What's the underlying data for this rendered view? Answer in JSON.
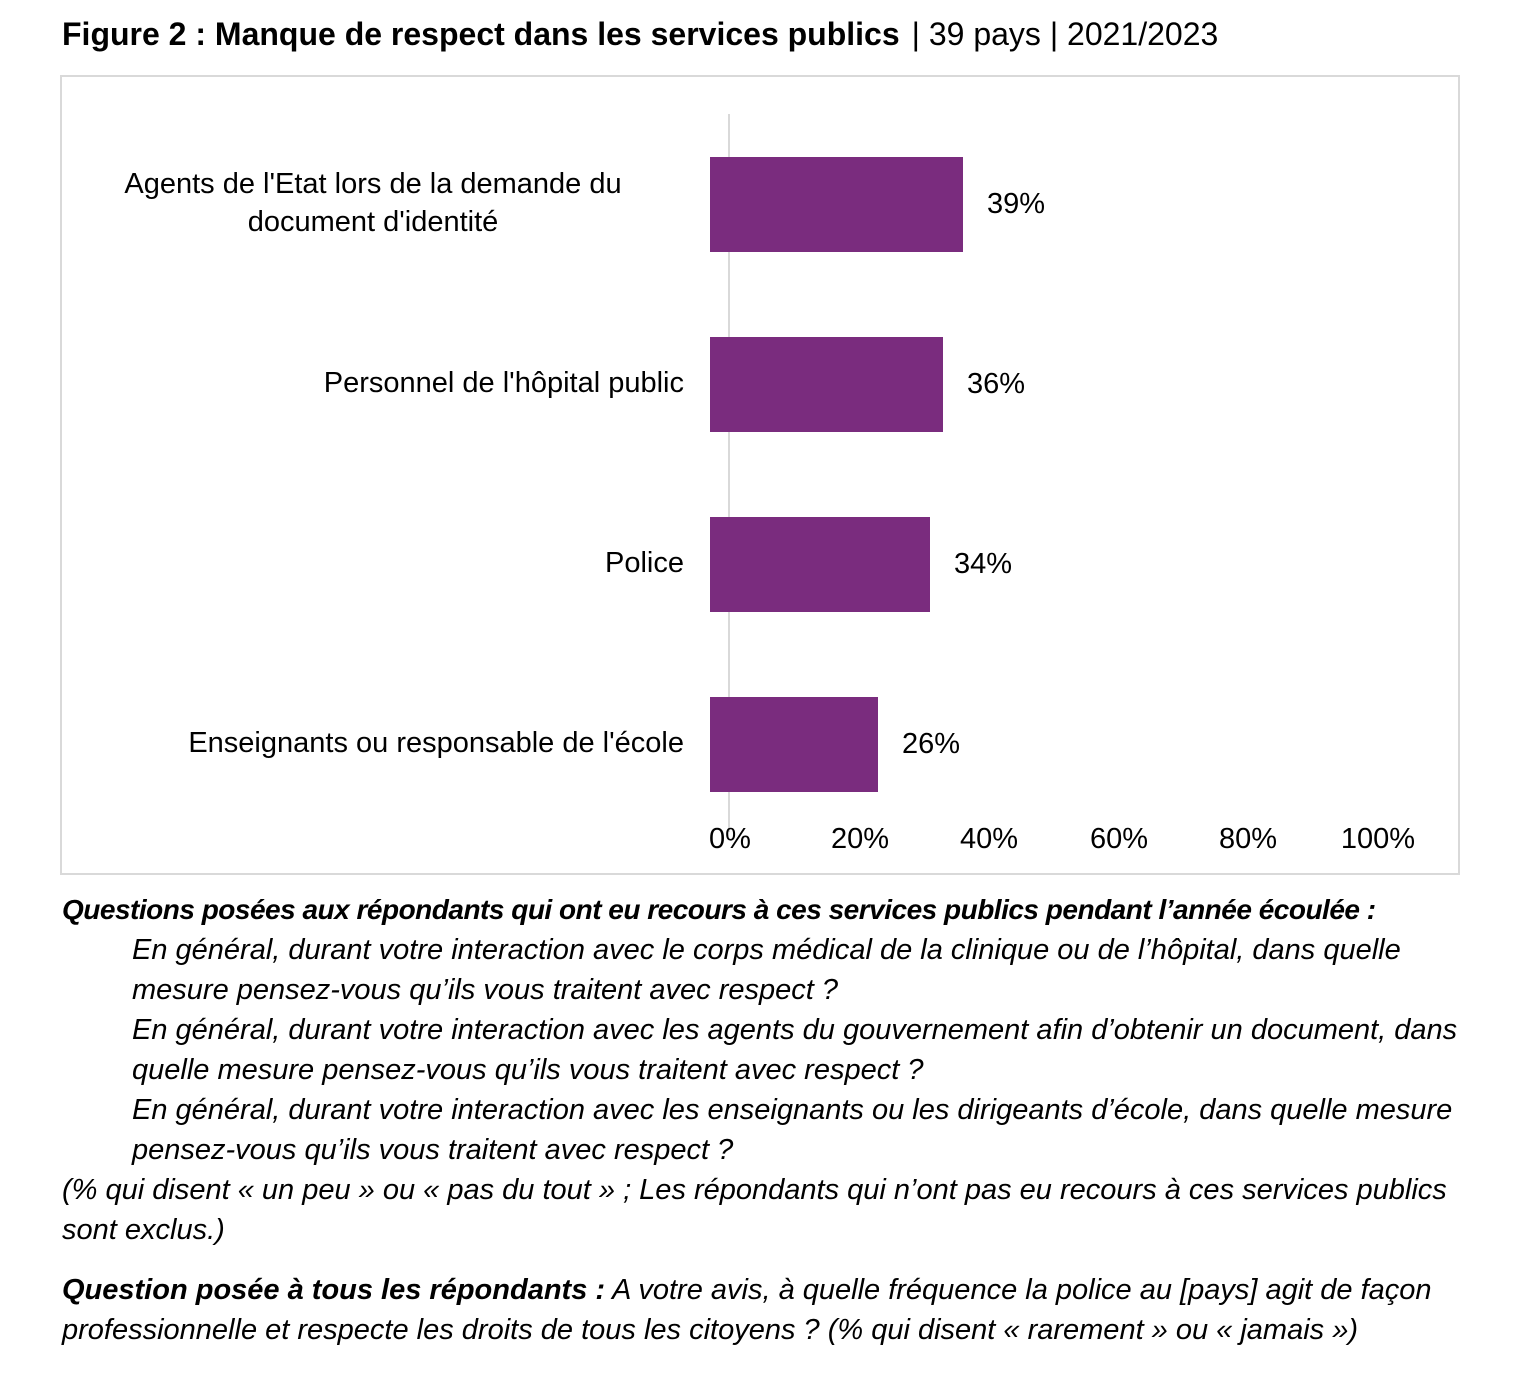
{
  "header": {
    "title_main": "Figure 2 : Manque de respect dans les services publics",
    "title_suffix": "| 39 pays | 2021/2023"
  },
  "chart_data": {
    "type": "bar",
    "orientation": "horizontal",
    "title": "Figure 2 : Manque de respect dans les services publics",
    "scope": "39 pays",
    "period": "2021/2023",
    "categories": [
      "Agents de l'Etat lors de la demande du document d'identité",
      "Personnel de l'hôpital public",
      "Police",
      "Enseignants ou responsable de l'école"
    ],
    "values": [
      39,
      36,
      34,
      26
    ],
    "value_labels": [
      "39%",
      "36%",
      "34%",
      "26%"
    ],
    "xlim": [
      0,
      100
    ],
    "xticks": [
      "0%",
      "20%",
      "40%",
      "60%",
      "80%",
      "100%"
    ],
    "xtick_values": [
      0,
      20,
      40,
      60,
      80,
      100
    ],
    "bar_color": "#7A2C7E",
    "axis_color": "#D9D9D9",
    "frame_border_color": "#D9D9D9",
    "grid": "off",
    "legend": "none",
    "value_label_position": "outside-end"
  },
  "notes": {
    "services_intro": "Questions posées aux répondants qui ont eu recours à ces services publics pendant l’année écoulée :",
    "services_questions": [
      "En général, durant votre interaction avec le corps médical de la clinique ou de l’hôpital, dans quelle mesure pensez-vous qu’ils vous traitent avec respect ?",
      "En général, durant votre interaction avec les agents du gouvernement afin d’obtenir un document, dans quelle mesure pensez-vous qu’ils vous traitent avec respect ?",
      "En général, durant votre interaction avec les enseignants ou les dirigeants d’école, dans quelle mesure pensez-vous qu’ils vous traitent avec respect ?"
    ],
    "services_note": "(% qui disent « un peu » ou « pas du tout » ; Les répondants qui n’ont pas eu recours à ces services publics sont exclus.)",
    "police_intro": "Question posée à tous les répondants :",
    "police_text": "A votre avis, à quelle fréquence la police au [pays] agit de façon professionnelle et respecte les droits de tous les citoyens ? (% qui disent « rarement » ou « jamais »)"
  }
}
